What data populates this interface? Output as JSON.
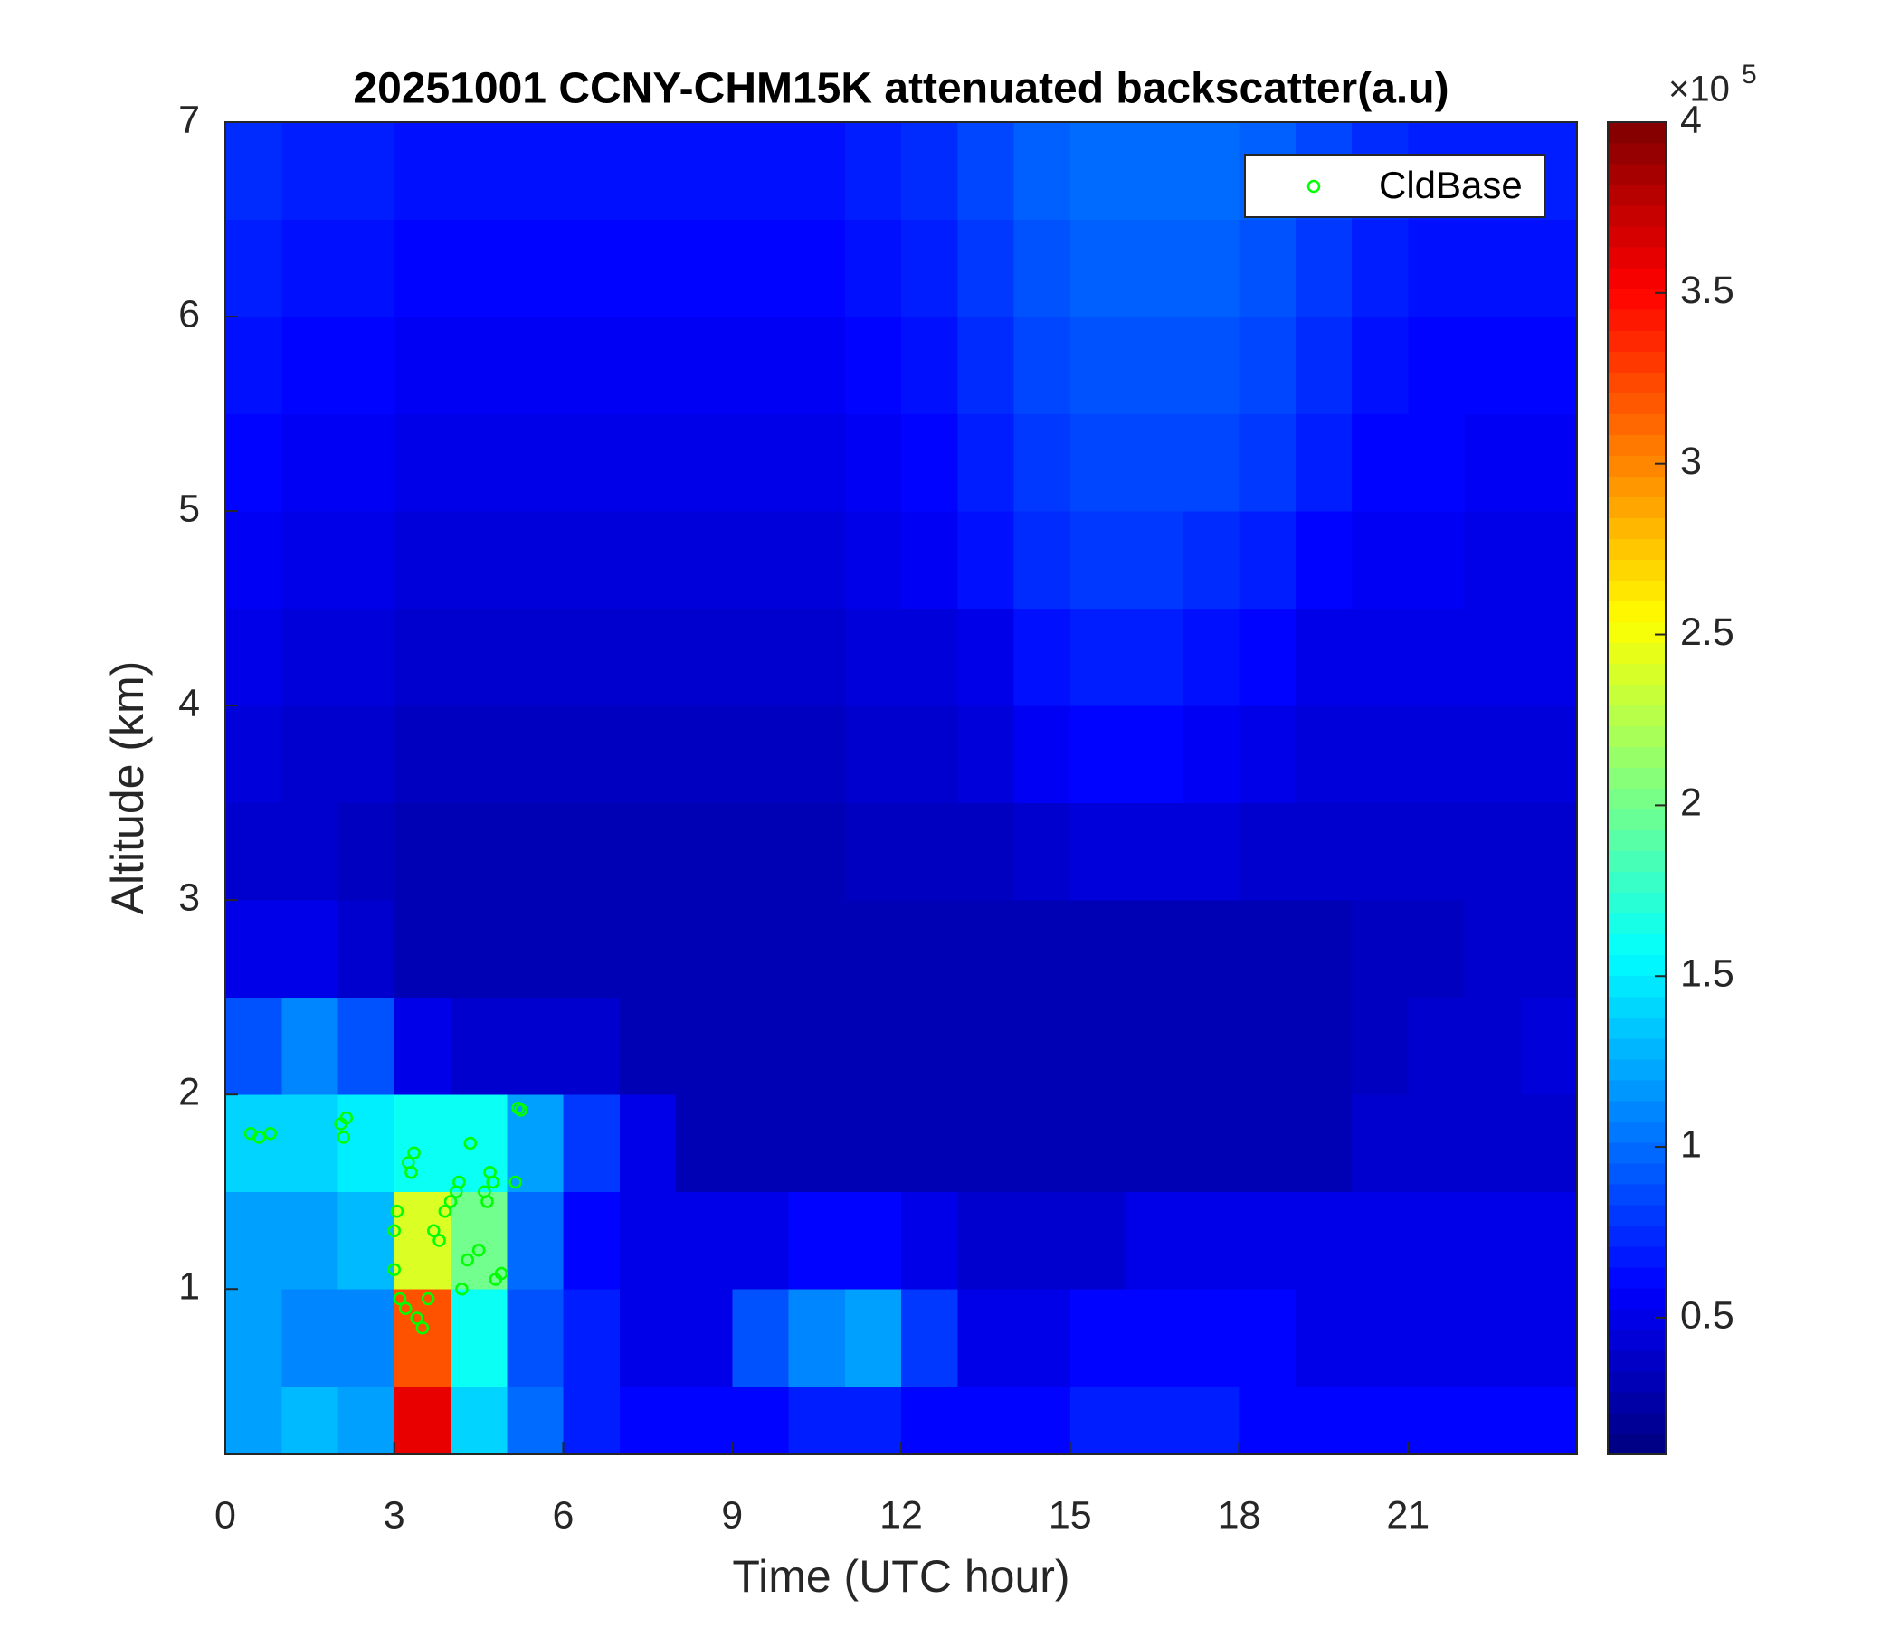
{
  "chart_data": {
    "type": "heatmap",
    "title": "20251001 CCNY-CHM15K attenuated backscatter(a.u)",
    "x_label": "Time (UTC hour)",
    "y_label": "Altitude (km)",
    "xlim": [
      0,
      24
    ],
    "ylim": [
      0.15,
      7
    ],
    "xticks": [
      0,
      3,
      6,
      9,
      12,
      15,
      18,
      21
    ],
    "yticks": [
      1,
      2,
      3,
      4,
      5,
      6,
      7
    ],
    "x_bins": [
      0,
      1,
      2,
      3,
      4,
      5,
      6,
      7,
      8,
      9,
      10,
      11,
      12,
      13,
      14,
      15,
      16,
      17,
      18,
      19,
      20,
      21,
      22,
      23,
      24
    ],
    "y_bins": [
      0.15,
      0.5,
      1,
      1.5,
      2,
      2.5,
      3,
      3.5,
      4,
      4.5,
      5,
      5.5,
      6,
      6.5,
      7
    ],
    "colormap": "jet",
    "clim": [
      0.1,
      4
    ],
    "cticks": [
      0.5,
      1,
      1.5,
      2,
      2.5,
      3,
      3.5,
      4
    ],
    "colorbar_multiplier": "×10",
    "colorbar_exponent": "5",
    "z": [
      [
        1.2,
        1.3,
        1.2,
        3.6,
        1.4,
        1.0,
        0.7,
        0.6,
        0.6,
        0.6,
        0.7,
        0.7,
        0.6,
        0.6,
        0.6,
        0.7,
        0.7,
        0.7,
        0.6,
        0.6,
        0.6,
        0.6,
        0.6,
        0.6
      ],
      [
        1.2,
        1.1,
        1.1,
        3.2,
        1.6,
        0.9,
        0.7,
        0.5,
        0.5,
        0.9,
        1.1,
        1.2,
        0.8,
        0.5,
        0.5,
        0.6,
        0.6,
        0.6,
        0.6,
        0.5,
        0.5,
        0.5,
        0.5,
        0.5
      ],
      [
        1.2,
        1.2,
        1.3,
        2.4,
        2.0,
        1.0,
        0.6,
        0.5,
        0.5,
        0.5,
        0.6,
        0.6,
        0.5,
        0.4,
        0.4,
        0.4,
        0.5,
        0.5,
        0.5,
        0.5,
        0.5,
        0.5,
        0.5,
        0.5
      ],
      [
        1.4,
        1.4,
        1.5,
        1.6,
        1.6,
        1.2,
        0.8,
        0.5,
        0.3,
        0.3,
        0.3,
        0.3,
        0.3,
        0.3,
        0.3,
        0.3,
        0.3,
        0.3,
        0.3,
        0.3,
        0.4,
        0.4,
        0.4,
        0.4
      ],
      [
        0.9,
        1.1,
        0.9,
        0.5,
        0.4,
        0.4,
        0.4,
        0.3,
        0.3,
        0.3,
        0.3,
        0.3,
        0.3,
        0.3,
        0.3,
        0.3,
        0.3,
        0.3,
        0.3,
        0.3,
        0.35,
        0.4,
        0.4,
        0.45
      ],
      [
        0.5,
        0.5,
        0.4,
        0.3,
        0.3,
        0.3,
        0.3,
        0.3,
        0.3,
        0.3,
        0.3,
        0.3,
        0.3,
        0.3,
        0.3,
        0.3,
        0.3,
        0.3,
        0.3,
        0.3,
        0.35,
        0.35,
        0.4,
        0.4
      ],
      [
        0.4,
        0.4,
        0.35,
        0.3,
        0.3,
        0.3,
        0.3,
        0.3,
        0.3,
        0.3,
        0.3,
        0.35,
        0.35,
        0.35,
        0.4,
        0.45,
        0.45,
        0.45,
        0.4,
        0.4,
        0.4,
        0.4,
        0.4,
        0.4
      ],
      [
        0.45,
        0.4,
        0.4,
        0.35,
        0.35,
        0.35,
        0.35,
        0.35,
        0.35,
        0.35,
        0.35,
        0.4,
        0.4,
        0.45,
        0.55,
        0.6,
        0.6,
        0.55,
        0.5,
        0.45,
        0.45,
        0.45,
        0.45,
        0.45
      ],
      [
        0.5,
        0.45,
        0.45,
        0.4,
        0.4,
        0.4,
        0.4,
        0.4,
        0.4,
        0.4,
        0.4,
        0.45,
        0.45,
        0.5,
        0.65,
        0.7,
        0.7,
        0.65,
        0.6,
        0.5,
        0.5,
        0.5,
        0.5,
        0.5
      ],
      [
        0.55,
        0.5,
        0.5,
        0.45,
        0.45,
        0.45,
        0.45,
        0.45,
        0.45,
        0.45,
        0.45,
        0.5,
        0.55,
        0.65,
        0.75,
        0.8,
        0.8,
        0.75,
        0.7,
        0.6,
        0.55,
        0.55,
        0.5,
        0.5
      ],
      [
        0.6,
        0.55,
        0.55,
        0.5,
        0.5,
        0.5,
        0.5,
        0.5,
        0.5,
        0.5,
        0.5,
        0.55,
        0.6,
        0.7,
        0.8,
        0.85,
        0.85,
        0.85,
        0.8,
        0.7,
        0.6,
        0.6,
        0.55,
        0.55
      ],
      [
        0.65,
        0.6,
        0.6,
        0.55,
        0.55,
        0.55,
        0.55,
        0.55,
        0.55,
        0.55,
        0.55,
        0.6,
        0.65,
        0.75,
        0.85,
        0.9,
        0.9,
        0.9,
        0.85,
        0.75,
        0.65,
        0.6,
        0.6,
        0.6
      ],
      [
        0.7,
        0.65,
        0.65,
        0.6,
        0.6,
        0.6,
        0.6,
        0.6,
        0.6,
        0.6,
        0.6,
        0.65,
        0.7,
        0.8,
        0.9,
        0.95,
        0.95,
        0.95,
        0.9,
        0.8,
        0.7,
        0.65,
        0.65,
        0.65
      ],
      [
        0.75,
        0.7,
        0.7,
        0.65,
        0.65,
        0.65,
        0.65,
        0.65,
        0.65,
        0.65,
        0.65,
        0.7,
        0.75,
        0.85,
        0.95,
        1.0,
        1.0,
        1.0,
        0.95,
        0.85,
        0.75,
        0.7,
        0.7,
        0.7
      ]
    ],
    "series": [
      {
        "name": "CldBase",
        "color": "#00ff00",
        "type": "scatter",
        "x": [
          0.45,
          0.6,
          0.8,
          2.05,
          2.1,
          2.15,
          3.0,
          3.0,
          3.05,
          3.1,
          3.2,
          3.25,
          3.3,
          3.35,
          3.4,
          3.5,
          3.6,
          3.7,
          3.8,
          3.9,
          4.0,
          4.1,
          4.15,
          4.2,
          4.3,
          4.35,
          4.5,
          4.6,
          4.65,
          4.7,
          4.75,
          4.8,
          4.9,
          5.2,
          5.25,
          5.15
        ],
        "values": [
          1.8,
          1.78,
          1.8,
          1.85,
          1.78,
          1.88,
          1.1,
          1.3,
          1.4,
          0.95,
          0.9,
          1.65,
          1.6,
          1.7,
          0.85,
          0.8,
          0.95,
          1.3,
          1.25,
          1.4,
          1.45,
          1.5,
          1.55,
          1.0,
          1.15,
          1.75,
          1.2,
          1.5,
          1.45,
          1.6,
          1.55,
          1.05,
          1.08,
          1.93,
          1.92,
          1.55
        ]
      }
    ],
    "legend": "top-right"
  }
}
